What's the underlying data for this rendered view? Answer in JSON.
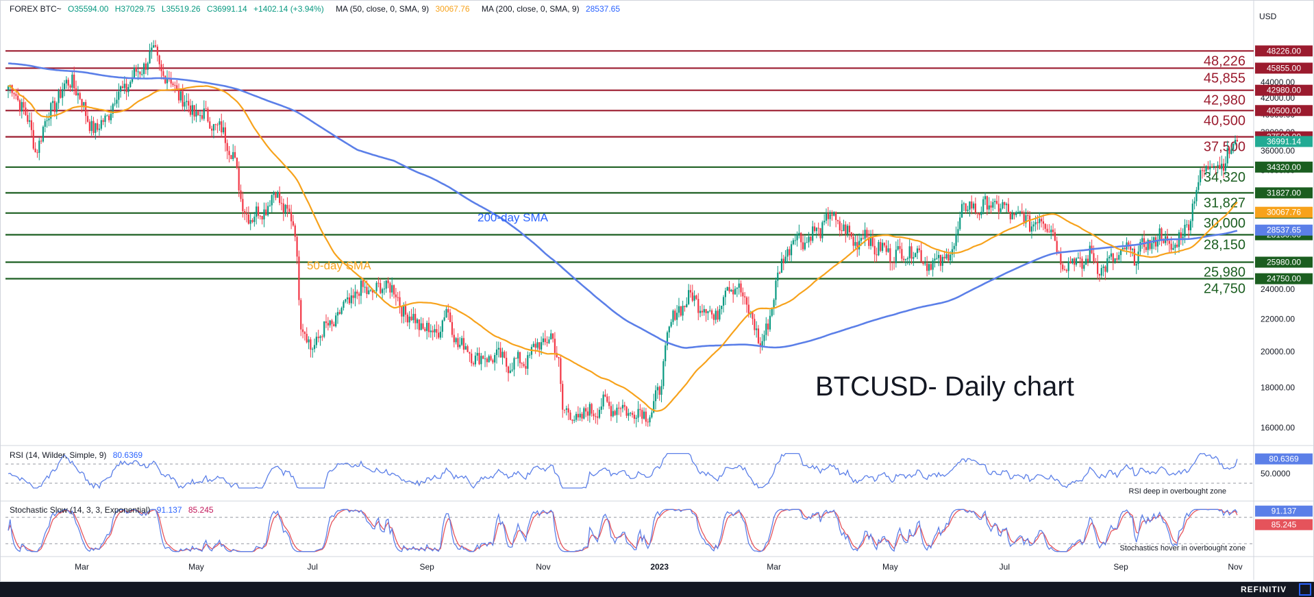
{
  "header": {
    "symbol": "FOREX BTC~",
    "open": "O35594.00",
    "high": "H37029.75",
    "low": "L35519.26",
    "close": "C36991.14",
    "change": "+1402.14 (+3.94%)",
    "ma50_label": "MA (50, close, 0, SMA, 9)",
    "ma50_value": "30067.76",
    "ma200_label": "MA (200, close, 0, SMA, 9)",
    "ma200_value": "28537.65"
  },
  "rsi_header": {
    "label": "RSI (14, Wilder, Simple, 9)",
    "value": "80.6369"
  },
  "stoch_header": {
    "label": "Stochastic Slow (14, 3, 3, Exponential)",
    "k": "91.137",
    "d": "85.245"
  },
  "colors": {
    "up": "#089981",
    "down": "#f23645",
    "ma50": "#f7a21b",
    "ma200": "#5b7fe8",
    "resistance": "#9b1b2e",
    "support": "#1b5e20",
    "price_tag": "#22ab94",
    "rsi": "#5b7fe8",
    "stoch_k": "#5b7fe8",
    "stoch_d": "#e5535b"
  },
  "icons": {
    "footer": "refinitiv-corner-icon"
  },
  "chart_data": [
    {
      "type": "candlestick",
      "title": "BTCUSD- Daily chart",
      "ylabel": "USD",
      "yscale": "log",
      "ylim": [
        15000,
        50000
      ],
      "x_ticks": [
        "Mar",
        "May",
        "Jul",
        "Sep",
        "Nov",
        "2023",
        "Mar",
        "May",
        "Jul",
        "Sep",
        "Nov"
      ],
      "y_ticks": [
        44000,
        42000,
        40000,
        38000,
        36000,
        34000,
        32000,
        30000,
        28000,
        26000,
        24000,
        22000,
        20000,
        18000,
        16000
      ],
      "y_tick_labels": [
        "44000.00",
        "42000.00",
        "40000.00",
        "38000.00",
        "36000.00",
        "34000.00",
        "32000.00",
        "30000.00",
        "28000.00",
        "26000.00",
        "24000.00",
        "22000.00",
        "20000.00",
        "18000.00",
        "16000.00"
      ],
      "last_price": 36991.14,
      "last_price_label": "36991.14",
      "resistance_levels": [
        {
          "value": 48226,
          "label": "48,226",
          "tag": "48226.00"
        },
        {
          "value": 45855,
          "label": "45,855",
          "tag": "45855.00"
        },
        {
          "value": 42980,
          "label": "42,980",
          "tag": "42980.00"
        },
        {
          "value": 40500,
          "label": "40,500",
          "tag": "40500.00"
        },
        {
          "value": 37500,
          "label": "37,500",
          "tag": "37500.00"
        }
      ],
      "support_levels": [
        {
          "value": 34320,
          "label": "34,320",
          "tag": "34320.00"
        },
        {
          "value": 31827,
          "label": "31,827",
          "tag": "31827.00"
        },
        {
          "value": 30000,
          "label": "30,000",
          "tag": "30000.00"
        },
        {
          "value": 28150,
          "label": "28,150",
          "tag": "28150.00"
        },
        {
          "value": 25980,
          "label": "25,980",
          "tag": "25980.00"
        },
        {
          "value": 24750,
          "label": "24,750",
          "tag": "24750.00"
        }
      ],
      "ma_tags": [
        {
          "name": "ma50",
          "value": 30067.76,
          "tag": "30067.76"
        },
        {
          "name": "ma200",
          "value": 28537.65,
          "tag": "28537.65"
        }
      ],
      "series": [
        {
          "name": "BTCUSD",
          "anchors": [
            [
              0,
              43500
            ],
            [
              8,
              41000
            ],
            [
              14,
              36000
            ],
            [
              18,
              38500
            ],
            [
              25,
              42000
            ],
            [
              33,
              44500
            ],
            [
              40,
              40000
            ],
            [
              46,
              38000
            ],
            [
              52,
              40500
            ],
            [
              58,
              43000
            ],
            [
              63,
              44000
            ],
            [
              70,
              46500
            ],
            [
              76,
              47800
            ],
            [
              80,
              45000
            ],
            [
              86,
              43500
            ],
            [
              92,
              41000
            ],
            [
              98,
              40000
            ],
            [
              104,
              39500
            ],
            [
              110,
              38000
            ],
            [
              116,
              36000
            ],
            [
              120,
              31000
            ],
            [
              126,
              29500
            ],
            [
              132,
              30500
            ],
            [
              138,
              31800
            ],
            [
              144,
              30000
            ],
            [
              148,
              28500
            ],
            [
              151,
              22000
            ],
            [
              156,
              20000
            ],
            [
              160,
              21000
            ],
            [
              166,
              21500
            ],
            [
              172,
              22500
            ],
            [
              178,
              23500
            ],
            [
              184,
              24000
            ],
            [
              190,
              23800
            ],
            [
              196,
              24500
            ],
            [
              202,
              23000
            ],
            [
              208,
              22000
            ],
            [
              214,
              21500
            ],
            [
              220,
              21000
            ],
            [
              226,
              22500
            ],
            [
              232,
              20500
            ],
            [
              238,
              20000
            ],
            [
              244,
              19500
            ],
            [
              250,
              19800
            ],
            [
              256,
              19400
            ],
            [
              262,
              19300
            ],
            [
              268,
              19600
            ],
            [
              274,
              20500
            ],
            [
              280,
              20800
            ],
            [
              284,
              19500
            ],
            [
              286,
              17000
            ],
            [
              290,
              16500
            ],
            [
              296,
              16500
            ],
            [
              302,
              16900
            ],
            [
              308,
              17100
            ],
            [
              314,
              17000
            ],
            [
              320,
              16800
            ],
            [
              326,
              16700
            ],
            [
              332,
              16800
            ],
            [
              336,
              17800
            ],
            [
              340,
              21000
            ],
            [
              346,
              22800
            ],
            [
              352,
              23400
            ],
            [
              358,
              23000
            ],
            [
              364,
              22000
            ],
            [
              370,
              24000
            ],
            [
              376,
              24500
            ],
            [
              380,
              22800
            ],
            [
              384,
              22300
            ],
            [
              388,
              20000
            ],
            [
              394,
              23000
            ],
            [
              400,
              26500
            ],
            [
              406,
              28000
            ],
            [
              412,
              27800
            ],
            [
              418,
              28500
            ],
            [
              424,
              29800
            ],
            [
              430,
              28800
            ],
            [
              436,
              27600
            ],
            [
              442,
              28200
            ],
            [
              448,
              27000
            ],
            [
              454,
              26800
            ],
            [
              460,
              26500
            ],
            [
              466,
              27000
            ],
            [
              472,
              26300
            ],
            [
              478,
              25700
            ],
            [
              484,
              26500
            ],
            [
              488,
              27000
            ],
            [
              492,
              30500
            ],
            [
              498,
              30400
            ],
            [
              504,
              30600
            ],
            [
              510,
              30800
            ],
            [
              516,
              30000
            ],
            [
              522,
              29600
            ],
            [
              528,
              29200
            ],
            [
              534,
              29400
            ],
            [
              538,
              29000
            ],
            [
              542,
              26200
            ],
            [
              548,
              26000
            ],
            [
              554,
              25900
            ],
            [
              558,
              26500
            ],
            [
              562,
              25800
            ],
            [
              566,
              25500
            ],
            [
              570,
              26200
            ],
            [
              576,
              26800
            ],
            [
              582,
              26600
            ],
            [
              588,
              27400
            ],
            [
              594,
              28000
            ],
            [
              598,
              27500
            ],
            [
              602,
              27000
            ],
            [
              606,
              28500
            ],
            [
              610,
              29800
            ],
            [
              613,
              32000
            ],
            [
              616,
              34200
            ],
            [
              620,
              34500
            ],
            [
              625,
              34800
            ],
            [
              630,
              35500
            ],
            [
              634,
              36991
            ]
          ]
        },
        {
          "name": "50-day SMA",
          "label": "50-day SMA"
        },
        {
          "name": "200-day SMA",
          "label": "200-day SMA"
        }
      ]
    },
    {
      "type": "line",
      "title": "RSI (14, Wilder, Simple, 9)",
      "ylim": [
        0,
        100
      ],
      "y_ticks": [
        80.6369,
        50
      ],
      "y_tick_labels": [
        "80.6369",
        "50.0000"
      ],
      "reference_lines": [
        70,
        30
      ],
      "annotation": "RSI deep in overbought zone"
    },
    {
      "type": "line",
      "title": "Stochastic Slow (14, 3, 3, Exponential)",
      "ylim": [
        0,
        100
      ],
      "y_ticks": [
        91.137,
        85.245
      ],
      "y_tick_labels": [
        "91.137",
        "85.245"
      ],
      "reference_lines": [
        80,
        20
      ],
      "annotation": "Stochastics hover in overbought zone"
    }
  ],
  "footer": {
    "brand": "REFINITIV"
  }
}
